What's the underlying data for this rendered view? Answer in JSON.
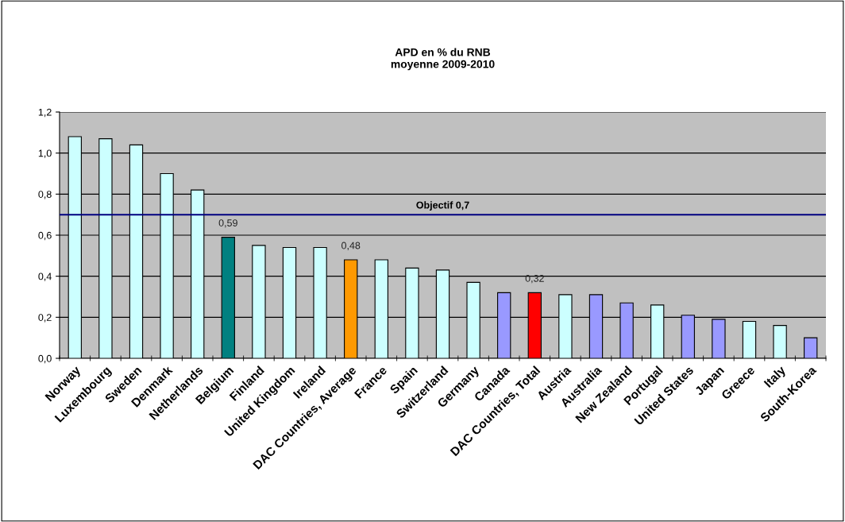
{
  "chart_data": {
    "type": "bar",
    "title": "APD en % du RNB\nmoyenne 2009-2010",
    "categories": [
      "Norway",
      "Luxembourg",
      "Sweden",
      "Denmark",
      "Netherlands",
      "Belgium",
      "Finland",
      "United Kingdom",
      "Ireland",
      "DAC Countries, Average",
      "France",
      "Spain",
      "Switzerland",
      "Germany",
      "Canada",
      "DAC Countries, Total",
      "Austria",
      "Australia",
      "New Zealand",
      "Portugal",
      "United States",
      "Japan",
      "Greece",
      "Italy",
      "South-Korea"
    ],
    "values": [
      1.08,
      1.07,
      1.04,
      0.9,
      0.82,
      0.59,
      0.55,
      0.54,
      0.54,
      0.48,
      0.48,
      0.44,
      0.43,
      0.37,
      0.32,
      0.32,
      0.31,
      0.31,
      0.27,
      0.26,
      0.21,
      0.19,
      0.18,
      0.16,
      0.1
    ],
    "colors": [
      "#ccffff",
      "#ccffff",
      "#ccffff",
      "#ccffff",
      "#ccffff",
      "#008080",
      "#ccffff",
      "#ccffff",
      "#ccffff",
      "#ff9900",
      "#ccffff",
      "#ccffff",
      "#ccffff",
      "#ccffff",
      "#9999ff",
      "#ff0000",
      "#ccffff",
      "#9999ff",
      "#9999ff",
      "#ccffff",
      "#9999ff",
      "#9999ff",
      "#ccffff",
      "#ccffff",
      "#9999ff"
    ],
    "value_labels": [
      null,
      null,
      null,
      null,
      null,
      "0,59",
      null,
      null,
      null,
      "0,48",
      null,
      null,
      null,
      null,
      null,
      "0,32",
      null,
      null,
      null,
      null,
      null,
      null,
      null,
      null,
      null
    ],
    "ylim": [
      0,
      1.2
    ],
    "yticks": [
      {
        "value": 0,
        "label": "0,0"
      },
      {
        "value": 0.2,
        "label": "0,2"
      },
      {
        "value": 0.4,
        "label": "0,4"
      },
      {
        "value": 0.6,
        "label": "0,6"
      },
      {
        "value": 0.8,
        "label": "0,8"
      },
      {
        "value": 1.0,
        "label": "1,0"
      },
      {
        "value": 1.2,
        "label": "1,2"
      }
    ],
    "grid": "y",
    "ref_lines": [
      {
        "axis": "y",
        "value": 0.7,
        "label": "Objectif 0,7",
        "color": "#000080"
      }
    ]
  }
}
